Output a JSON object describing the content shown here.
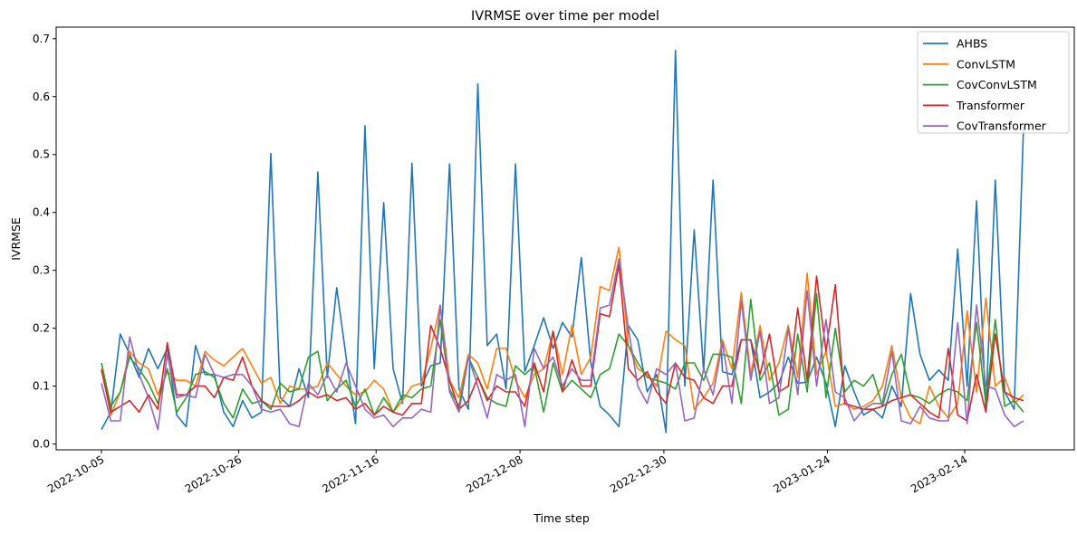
{
  "chart_data": {
    "type": "line",
    "title": "IVRMSE over time per model",
    "xlabel": "Time step",
    "ylabel": "IVRMSE",
    "ylim": [
      -0.01,
      0.72
    ],
    "yticks": [
      0.0,
      0.1,
      0.2,
      0.3,
      0.4,
      0.5,
      0.6,
      0.7
    ],
    "ytick_labels": [
      "0.0",
      "0.1",
      "0.2",
      "0.3",
      "0.4",
      "0.5",
      "0.6",
      "0.7"
    ],
    "xticks": [
      "2022-10-05",
      "2022-10-26",
      "2022-11-16",
      "2022-12-08",
      "2022-12-30",
      "2023-01-24",
      "2023-02-14"
    ],
    "x_start": "2022-10-05",
    "x_end": "2023-02-23",
    "grid": false,
    "legend_position": "top-right",
    "series": [
      {
        "name": "AHBS",
        "color": "#1f77b4",
        "values": [
          0.025,
          0.055,
          0.19,
          0.155,
          0.115,
          0.165,
          0.13,
          0.165,
          0.05,
          0.03,
          0.17,
          0.12,
          0.12,
          0.055,
          0.03,
          0.075,
          0.045,
          0.055,
          0.502,
          0.08,
          0.065,
          0.13,
          0.08,
          0.47,
          0.115,
          0.27,
          0.15,
          0.035,
          0.55,
          0.13,
          0.417,
          0.13,
          0.07,
          0.485,
          0.1,
          0.135,
          0.14,
          0.484,
          0.095,
          0.06,
          0.622,
          0.17,
          0.19,
          0.095,
          0.484,
          0.125,
          0.17,
          0.218,
          0.165,
          0.21,
          0.185,
          0.322,
          0.14,
          0.065,
          0.05,
          0.03,
          0.205,
          0.18,
          0.09,
          0.12,
          0.02,
          0.68,
          0.1,
          0.37,
          0.125,
          0.456,
          0.125,
          0.12,
          0.18,
          0.18,
          0.08,
          0.09,
          0.105,
          0.15,
          0.105,
          0.107,
          0.15,
          0.105,
          0.03,
          0.135,
          0.09,
          0.05,
          0.06,
          0.045,
          0.1,
          0.065,
          0.26,
          0.155,
          0.11,
          0.128,
          0.11,
          0.337,
          0.1,
          0.42,
          0.06,
          0.456,
          0.09,
          0.06,
          0.55
        ]
      },
      {
        "name": "ConvLSTM",
        "color": "#ff7f0e",
        "values": [
          0.13,
          0.05,
          0.09,
          0.16,
          0.14,
          0.13,
          0.085,
          0.125,
          0.11,
          0.11,
          0.1,
          0.16,
          0.145,
          0.135,
          0.15,
          0.165,
          0.135,
          0.105,
          0.115,
          0.07,
          0.1,
          0.095,
          0.095,
          0.1,
          0.14,
          0.12,
          0.1,
          0.085,
          0.09,
          0.11,
          0.095,
          0.055,
          0.075,
          0.1,
          0.105,
          0.165,
          0.24,
          0.11,
          0.08,
          0.155,
          0.14,
          0.095,
          0.165,
          0.165,
          0.11,
          0.08,
          0.12,
          0.13,
          0.195,
          0.12,
          0.205,
          0.12,
          0.15,
          0.272,
          0.265,
          0.34,
          0.17,
          0.13,
          0.12,
          0.1,
          0.195,
          0.18,
          0.17,
          0.06,
          0.08,
          0.105,
          0.18,
          0.13,
          0.262,
          0.12,
          0.205,
          0.11,
          0.14,
          0.205,
          0.115,
          0.295,
          0.12,
          0.16,
          0.065,
          0.07,
          0.06,
          0.065,
          0.075,
          0.1,
          0.17,
          0.08,
          0.045,
          0.035,
          0.1,
          0.065,
          0.045,
          0.07,
          0.23,
          0.09,
          0.252,
          0.1,
          0.115,
          0.07,
          0.085
        ]
      },
      {
        "name": "CovConvLSTM",
        "color": "#2ca02c",
        "values": [
          0.14,
          0.065,
          0.09,
          0.15,
          0.13,
          0.105,
          0.07,
          0.13,
          0.055,
          0.08,
          0.12,
          0.125,
          0.115,
          0.07,
          0.045,
          0.095,
          0.07,
          0.075,
          0.06,
          0.105,
          0.09,
          0.095,
          0.15,
          0.16,
          0.075,
          0.095,
          0.11,
          0.065,
          0.095,
          0.05,
          0.08,
          0.055,
          0.085,
          0.08,
          0.095,
          0.1,
          0.215,
          0.095,
          0.065,
          0.15,
          0.115,
          0.08,
          0.07,
          0.065,
          0.135,
          0.12,
          0.135,
          0.055,
          0.14,
          0.09,
          0.11,
          0.095,
          0.08,
          0.12,
          0.13,
          0.19,
          0.17,
          0.14,
          0.115,
          0.11,
          0.105,
          0.095,
          0.14,
          0.14,
          0.11,
          0.155,
          0.155,
          0.15,
          0.07,
          0.25,
          0.11,
          0.14,
          0.05,
          0.06,
          0.19,
          0.09,
          0.26,
          0.08,
          0.2,
          0.09,
          0.11,
          0.1,
          0.12,
          0.065,
          0.12,
          0.155,
          0.085,
          0.08,
          0.07,
          0.085,
          0.095,
          0.09,
          0.075,
          0.21,
          0.07,
          0.215,
          0.065,
          0.075,
          0.055
        ]
      },
      {
        "name": "Transformer",
        "color": "#d62728",
        "values": [
          0.128,
          0.055,
          0.065,
          0.075,
          0.055,
          0.085,
          0.06,
          0.175,
          0.085,
          0.085,
          0.1,
          0.1,
          0.08,
          0.115,
          0.11,
          0.15,
          0.1,
          0.075,
          0.065,
          0.065,
          0.065,
          0.075,
          0.09,
          0.08,
          0.085,
          0.075,
          0.08,
          0.06,
          0.07,
          0.05,
          0.065,
          0.055,
          0.05,
          0.07,
          0.07,
          0.205,
          0.165,
          0.11,
          0.06,
          0.075,
          0.115,
          0.075,
          0.1,
          0.09,
          0.09,
          0.065,
          0.14,
          0.09,
          0.195,
          0.09,
          0.145,
          0.1,
          0.1,
          0.225,
          0.22,
          0.31,
          0.13,
          0.11,
          0.125,
          0.09,
          0.07,
          0.14,
          0.115,
          0.11,
          0.08,
          0.07,
          0.1,
          0.1,
          0.18,
          0.18,
          0.12,
          0.19,
          0.09,
          0.1,
          0.235,
          0.11,
          0.29,
          0.16,
          0.275,
          0.07,
          0.065,
          0.06,
          0.06,
          0.065,
          0.075,
          0.08,
          0.085,
          0.07,
          0.055,
          0.045,
          0.165,
          0.05,
          0.04,
          0.12,
          0.055,
          0.19,
          0.09,
          0.08,
          0.075
        ]
      },
      {
        "name": "CovTransformer",
        "color": "#9467bd",
        "values": [
          0.105,
          0.04,
          0.04,
          0.185,
          0.12,
          0.08,
          0.025,
          0.155,
          0.08,
          0.085,
          0.08,
          0.155,
          0.12,
          0.115,
          0.12,
          0.12,
          0.1,
          0.06,
          0.055,
          0.06,
          0.035,
          0.03,
          0.105,
          0.085,
          0.12,
          0.09,
          0.14,
          0.1,
          0.06,
          0.045,
          0.05,
          0.03,
          0.045,
          0.045,
          0.06,
          0.055,
          0.24,
          0.09,
          0.055,
          0.15,
          0.1,
          0.045,
          0.12,
          0.11,
          0.12,
          0.03,
          0.165,
          0.13,
          0.15,
          0.1,
          0.13,
          0.11,
          0.11,
          0.235,
          0.24,
          0.32,
          0.2,
          0.1,
          0.07,
          0.13,
          0.12,
          0.14,
          0.04,
          0.045,
          0.13,
          0.085,
          0.175,
          0.07,
          0.248,
          0.11,
          0.195,
          0.07,
          0.08,
          0.2,
          0.085,
          0.265,
          0.1,
          0.215,
          0.09,
          0.08,
          0.04,
          0.06,
          0.07,
          0.07,
          0.16,
          0.04,
          0.035,
          0.065,
          0.045,
          0.04,
          0.04,
          0.21,
          0.035,
          0.24,
          0.1,
          0.095,
          0.05,
          0.03,
          0.04
        ]
      }
    ]
  }
}
